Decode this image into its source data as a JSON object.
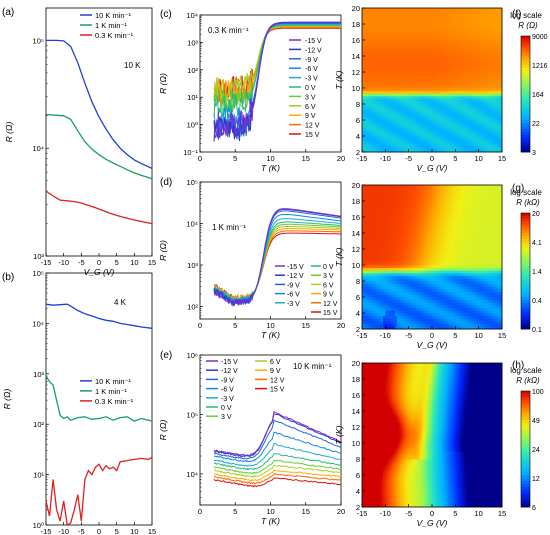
{
  "chart_data": [
    {
      "panel": "(a)",
      "type": "line",
      "annotation": "10 K",
      "xlabel": "V_G (V)",
      "ylabel": "R (Ω)",
      "yscale": "log",
      "xlim": [
        -15,
        15
      ],
      "ylim": [
        1000,
        200000
      ],
      "xticks": [
        "-15",
        "-10",
        "-5",
        "0",
        "5",
        "10",
        "15"
      ],
      "yticks": [
        {
          "v": 1000,
          "label": "10³"
        },
        {
          "v": 10000,
          "label": "10⁴"
        },
        {
          "v": 100000,
          "label": "10⁵"
        }
      ],
      "legend_position": "top-right",
      "series": [
        {
          "name": "10 K min⁻¹",
          "color": "#1f3fd6",
          "x": [
            -15,
            -12,
            -10,
            -8,
            -6,
            -4,
            -2,
            0,
            2,
            4,
            6,
            8,
            10,
            12,
            15
          ],
          "y": [
            100000,
            100000,
            99000,
            88000,
            62000,
            40000,
            27000,
            19500,
            15000,
            12000,
            10000,
            8700,
            7800,
            7200,
            6500
          ]
        },
        {
          "name": "1 K min⁻¹",
          "color": "#15a06a",
          "x": [
            -15,
            -12,
            -10,
            -8,
            -6,
            -4,
            -2,
            0,
            2,
            4,
            6,
            8,
            10,
            12,
            15
          ],
          "y": [
            20500,
            20200,
            20000,
            18500,
            14500,
            11500,
            9800,
            8700,
            7900,
            7300,
            6800,
            6300,
            5900,
            5600,
            5200
          ]
        },
        {
          "name": "0.3 K min⁻¹",
          "color": "#e02020",
          "x": [
            -15,
            -13,
            -11,
            -9,
            -7,
            -5,
            -3,
            -1,
            1,
            3,
            5,
            7,
            9,
            11,
            13,
            15
          ],
          "y": [
            4000,
            3600,
            3300,
            3250,
            3200,
            3100,
            2950,
            2800,
            2650,
            2500,
            2380,
            2280,
            2200,
            2120,
            2060,
            2000
          ]
        }
      ]
    },
    {
      "panel": "(b)",
      "type": "line",
      "annotation": "4 K",
      "xlabel": "V_G (V)",
      "ylabel": "R (Ω)",
      "yscale": "log",
      "xlim": [
        -15,
        15
      ],
      "ylim": [
        1,
        100000
      ],
      "xticks": [
        "-15",
        "-10",
        "-5",
        "0",
        "5",
        "10",
        "15"
      ],
      "yticks": [
        {
          "v": 1,
          "label": "10⁰"
        },
        {
          "v": 10,
          "label": "10¹"
        },
        {
          "v": 100,
          "label": "10²"
        },
        {
          "v": 1000,
          "label": "10³"
        },
        {
          "v": 10000,
          "label": "10⁴"
        },
        {
          "v": 100000,
          "label": "10⁵"
        }
      ],
      "legend_position": "middle-right",
      "series": [
        {
          "name": "10 K min⁻¹",
          "color": "#1f3fd6",
          "x": [
            -15,
            -13,
            -11,
            -9,
            -8,
            -6,
            -4,
            -2,
            0,
            2,
            4,
            6,
            8,
            10,
            12,
            15
          ],
          "y": [
            24000,
            23000,
            23500,
            24000,
            22000,
            18000,
            15500,
            14000,
            12500,
            11500,
            11000,
            10000,
            9500,
            9000,
            8500,
            8000
          ]
        },
        {
          "name": "1 K min⁻¹",
          "color": "#15a06a",
          "x": [
            -15,
            -14,
            -13,
            -12,
            -11,
            -10,
            -9,
            -8,
            -6,
            -4,
            -2,
            0,
            2,
            4,
            6,
            8,
            10,
            12,
            14,
            15
          ],
          "y": [
            900,
            700,
            600,
            300,
            150,
            130,
            140,
            120,
            135,
            140,
            125,
            130,
            140,
            120,
            135,
            140,
            115,
            130,
            120,
            115
          ]
        },
        {
          "name": "0.3 K min⁻¹",
          "color": "#e02020",
          "x": [
            -15,
            -14,
            -13,
            -12,
            -11,
            -10,
            -9,
            -8,
            -7,
            -6,
            -5,
            -4,
            -3,
            -2,
            -1,
            0,
            1,
            2,
            3,
            4,
            5,
            6,
            8,
            10,
            12,
            14,
            15
          ],
          "y": [
            3,
            1.5,
            8,
            2,
            1.2,
            3,
            1,
            1.1,
            2,
            4,
            1.2,
            8,
            12,
            10,
            14,
            16,
            12,
            15,
            13,
            14,
            12,
            18,
            19,
            20,
            21,
            20,
            22
          ]
        }
      ]
    },
    {
      "panel": "(c)",
      "type": "line",
      "annotation": "0.3 K min⁻¹",
      "xlabel": "T (K)",
      "ylabel": "R (Ω)",
      "yscale": "log",
      "xlim": [
        0,
        20
      ],
      "ylim": [
        0.1,
        10000
      ],
      "xticks": [
        "0",
        "5",
        "10",
        "15",
        "20"
      ],
      "yticks": [
        {
          "v": 0.1,
          "label": "10⁻¹"
        },
        {
          "v": 1,
          "label": "10⁰"
        },
        {
          "v": 10,
          "label": "10¹"
        },
        {
          "v": 100,
          "label": "10²"
        },
        {
          "v": 1000,
          "label": "10³"
        },
        {
          "v": 10000,
          "label": "10⁴"
        }
      ],
      "legend_position": "right",
      "legend": [
        "-15 V",
        "-12 V",
        "-9 V",
        "-6 V",
        "-3 V",
        "0 V",
        "3 V",
        "6 V",
        "9 V",
        "12 V",
        "15 V"
      ],
      "series_colors": [
        "#7a2fd0",
        "#3333cc",
        "#2266dd",
        "#1188ee",
        "#22aacc",
        "#22bb77",
        "#66cc33",
        "#aacc22",
        "#ffaa00",
        "#ff6600",
        "#dd1111"
      ],
      "series_lowT_resistance": [
        1.0,
        0.7,
        0.8,
        1.5,
        1.0,
        5,
        8,
        20,
        18,
        15,
        20
      ],
      "series_highT_resistance": [
        5500,
        5300,
        5100,
        4900,
        4600,
        4300,
        4100,
        3900,
        3700,
        3500,
        3300
      ]
    },
    {
      "panel": "(d)",
      "type": "line",
      "annotation": "1 K min⁻¹",
      "xlabel": "T (K)",
      "ylabel": "R (Ω)",
      "yscale": "log",
      "xlim": [
        0,
        20
      ],
      "ylim": [
        50,
        100000
      ],
      "xticks": [
        "0",
        "5",
        "10",
        "15",
        "20"
      ],
      "yticks": [
        {
          "v": 100,
          "label": "10²"
        },
        {
          "v": 1000,
          "label": "10³"
        },
        {
          "v": 10000,
          "label": "10⁴"
        },
        {
          "v": 100000,
          "label": "10⁵"
        }
      ],
      "legend_position": "bottom-right",
      "legend": [
        "-15 V",
        "-12 V",
        "-9 V",
        "-6 V",
        "-3 V",
        "0 V",
        "3 V",
        "6 V",
        "9 V",
        "12 V",
        "15 V"
      ],
      "series_colors": [
        "#7a2fd0",
        "#3333cc",
        "#2266dd",
        "#1188ee",
        "#22aacc",
        "#22bb77",
        "#66cc33",
        "#aacc22",
        "#ffaa00",
        "#ff6600",
        "#dd1111"
      ],
      "series_peak_resistance": [
        25000,
        24000,
        22000,
        18000,
        14000,
        11500,
        10000,
        8800,
        7800,
        6800,
        6000
      ],
      "series_20K_resistance": [
        15000,
        14500,
        13500,
        11500,
        10000,
        9000,
        8300,
        7600,
        7000,
        6300,
        5600
      ]
    },
    {
      "panel": "(e)",
      "type": "line",
      "annotation": "10 K min⁻¹",
      "xlabel": "T (K)",
      "ylabel": "R (Ω)",
      "yscale": "log",
      "xlim": [
        0,
        20
      ],
      "ylim": [
        3000,
        1000000
      ],
      "xticks": [
        "0",
        "5",
        "10",
        "15",
        "20"
      ],
      "yticks": [
        {
          "v": 10000,
          "label": "10⁴"
        },
        {
          "v": 100000,
          "label": "10⁵"
        },
        {
          "v": 1000000,
          "label": "10⁶"
        }
      ],
      "legend_position": "top-left",
      "legend": [
        "-15 V",
        "-12 V",
        "-9 V",
        "-6 V",
        "-3 V",
        "0 V",
        "3 V",
        "6 V",
        "9 V",
        "12 V",
        "15 V"
      ],
      "series_colors": [
        "#7a2fd0",
        "#3333cc",
        "#2266dd",
        "#1188ee",
        "#22aacc",
        "#22bb77",
        "#66cc33",
        "#aacc22",
        "#ffaa00",
        "#ff6600",
        "#dd1111"
      ],
      "series_2K_resistance": [
        25000,
        24000,
        22000,
        20000,
        17000,
        15000,
        13000,
        11500,
        10000,
        9000,
        8000
      ],
      "series_peak_resistance": [
        110000,
        105000,
        80000,
        50000,
        32000,
        22000,
        17000,
        14000,
        11500,
        10000,
        8500
      ],
      "series_20K_resistance": [
        35000,
        33000,
        28000,
        22000,
        17000,
        14000,
        12000,
        10500,
        9000,
        7800,
        6700
      ]
    },
    {
      "panel": "(f)",
      "type": "heatmap",
      "xlabel": "V_G (V)",
      "ylabel": "T (K)",
      "xlim": [
        -15,
        15
      ],
      "ylim": [
        2,
        20
      ],
      "xticks": [
        "-15",
        "-10",
        "-5",
        "0",
        "5",
        "10",
        "15"
      ],
      "yticks": [
        "2",
        "4",
        "6",
        "8",
        "10",
        "12",
        "14",
        "16",
        "18",
        "20"
      ],
      "colorbar_title": "log scale",
      "colorbar_unit": "R (Ω)",
      "colorbar_ticks": [
        "9000",
        "1216",
        "164",
        "22",
        "3"
      ]
    },
    {
      "panel": "(g)",
      "type": "heatmap",
      "xlabel": "V_G (V)",
      "ylabel": "T (K)",
      "xlim": [
        -15,
        15
      ],
      "ylim": [
        2,
        20
      ],
      "xticks": [
        "-15",
        "-10",
        "-5",
        "0",
        "5",
        "10",
        "15"
      ],
      "yticks": [
        "2",
        "4",
        "6",
        "8",
        "10",
        "12",
        "14",
        "16",
        "18",
        "20"
      ],
      "colorbar_title": "log scale",
      "colorbar_unit": "R (kΩ)",
      "colorbar_ticks": [
        "20",
        "4.1",
        "1.4",
        "0.4",
        "0.1"
      ]
    },
    {
      "panel": "(h)",
      "type": "heatmap",
      "xlabel": "V_G (V)",
      "ylabel": "T (K)",
      "xlim": [
        -15,
        15
      ],
      "ylim": [
        2,
        20
      ],
      "xticks": [
        "-15",
        "-10",
        "-5",
        "0",
        "5",
        "10",
        "15"
      ],
      "yticks": [
        "2",
        "4",
        "6",
        "8",
        "10",
        "12",
        "14",
        "16",
        "18",
        "20"
      ],
      "colorbar_title": "log scale",
      "colorbar_unit": "R (kΩ)",
      "colorbar_ticks": [
        "100",
        "49",
        "24",
        "12",
        "6"
      ]
    }
  ]
}
